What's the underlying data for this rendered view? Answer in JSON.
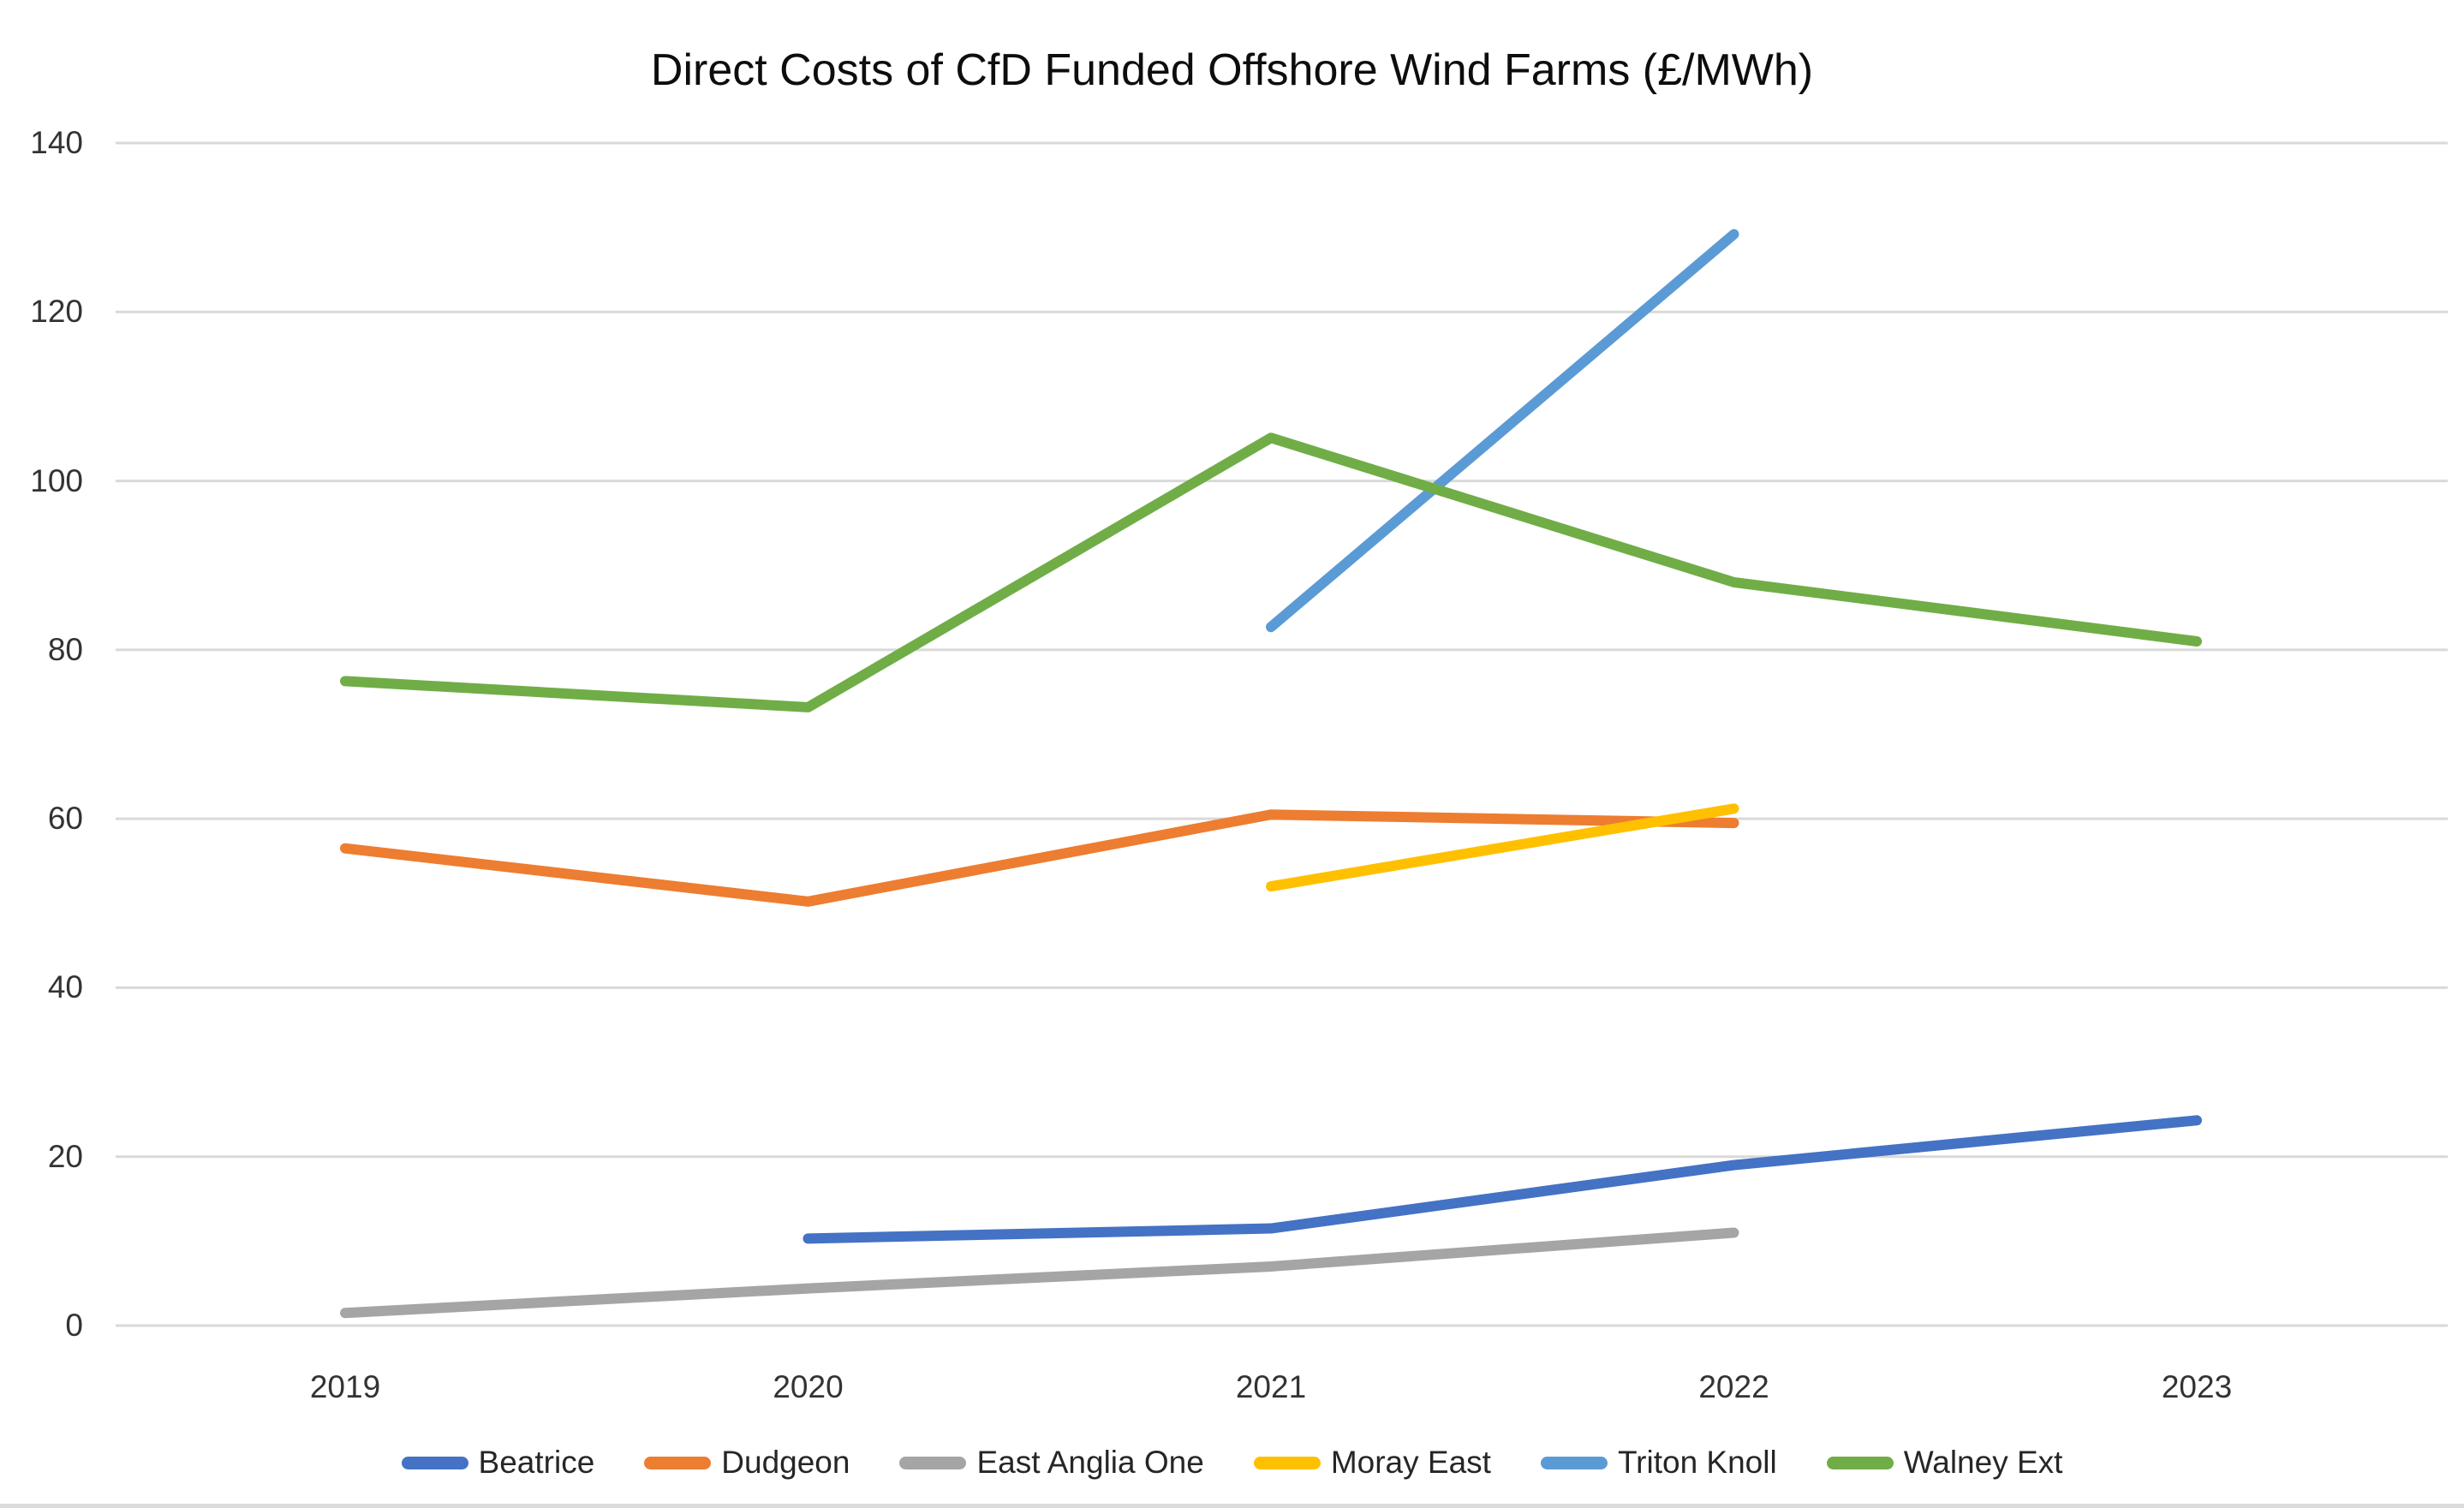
{
  "chart_data": {
    "type": "line",
    "title": "Direct Costs of CfD Funded Offshore Wind Farms (£/MWh)",
    "xlabel": "",
    "ylabel": "",
    "categories": [
      "2019",
      "2020",
      "2021",
      "2022",
      "2023"
    ],
    "series": [
      {
        "name": "Beatrice",
        "color": "#4472C4",
        "values": [
          null,
          10.3,
          11.5,
          19.0,
          24.3
        ]
      },
      {
        "name": "Dudgeon",
        "color": "#ED7D31",
        "values": [
          56.5,
          50.2,
          60.5,
          59.5,
          null
        ]
      },
      {
        "name": "East Anglia One",
        "color": "#A5A5A5",
        "values": [
          1.5,
          4.4,
          7.0,
          11.0,
          null
        ]
      },
      {
        "name": "Moray East",
        "color": "#FFC000",
        "values": [
          null,
          null,
          52.0,
          61.2,
          null
        ]
      },
      {
        "name": "Triton Knoll",
        "color": "#5B9BD5",
        "values": [
          null,
          null,
          82.7,
          129.2,
          null
        ]
      },
      {
        "name": "Walney Ext",
        "color": "#70AD47",
        "values": [
          76.3,
          73.2,
          105.1,
          88.0,
          81.0
        ]
      }
    ],
    "yticks": [
      0,
      20,
      40,
      60,
      80,
      100,
      120,
      140
    ],
    "ylim": [
      0,
      140
    ],
    "grid": true,
    "gridline_color": "#D9D9D9",
    "legend_position": "bottom",
    "background": "#FFFFFF"
  }
}
